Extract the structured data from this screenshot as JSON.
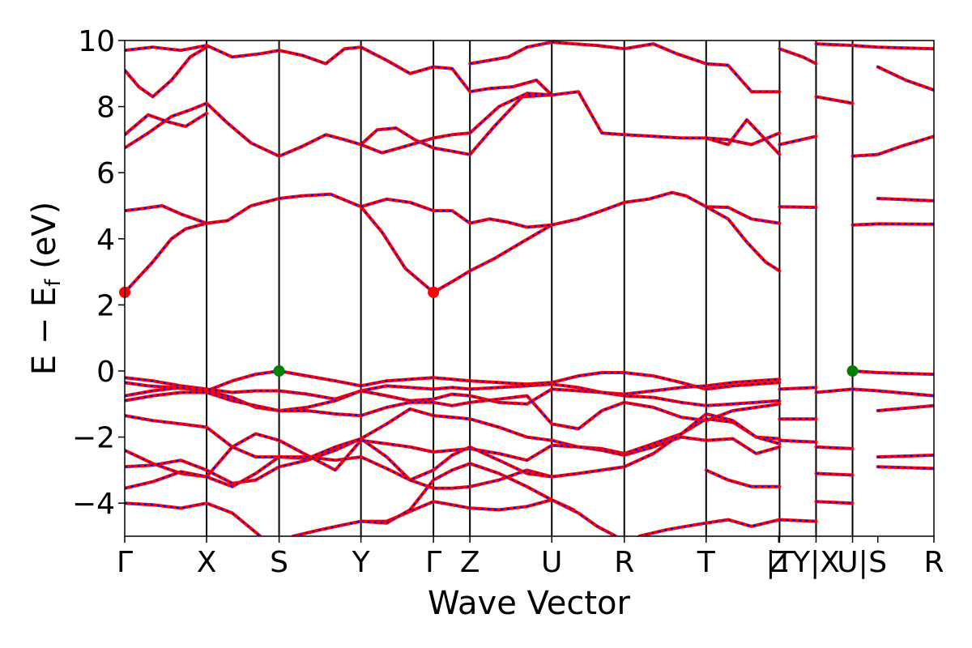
{
  "chart_data": {
    "type": "line",
    "title": "",
    "xlabel": "Wave Vector",
    "ylabel": "E − E_f (eV)",
    "ylabel_parts": {
      "main": "E − E",
      "sub": "f",
      "unit": " (eV)"
    },
    "ylim": [
      -5,
      10
    ],
    "yticks": [
      -4,
      -2,
      0,
      2,
      4,
      6,
      8,
      10
    ],
    "ytick_labels": [
      "−4",
      "−2",
      "0",
      "2",
      "4",
      "6",
      "8",
      "10"
    ],
    "xlim": [
      0,
      17.3
    ],
    "kpoints": [
      {
        "label": "Γ",
        "x": 0.0
      },
      {
        "label": "X",
        "x": 1.75
      },
      {
        "label": "S",
        "x": 3.3
      },
      {
        "label": "Y",
        "x": 5.05
      },
      {
        "label": "Γ",
        "x": 6.6
      },
      {
        "label": "Z",
        "x": 7.38
      },
      {
        "label": "U",
        "x": 9.13
      },
      {
        "label": "R",
        "x": 10.68
      },
      {
        "label": "T",
        "x": 12.43
      },
      {
        "label": "Z",
        "x": 13.98
      },
      {
        "label": "|T",
        "x": 14.0
      },
      {
        "label": "Y|X",
        "x": 14.78
      },
      {
        "label": "U|",
        "x": 15.56
      },
      {
        "label": "S",
        "x": 16.1
      },
      {
        "label": "R",
        "x": 17.3
      }
    ],
    "vlines_x": [
      1.75,
      3.3,
      5.05,
      6.6,
      7.38,
      9.13,
      10.68,
      12.43,
      14.0,
      14.78,
      15.56
    ],
    "grid": false,
    "legend": "none",
    "series_style": {
      "line_color": "#ff0000",
      "dash_color": "#0000ff"
    },
    "markers": [
      {
        "kind": "CBM",
        "x": 0.0,
        "y": 2.38,
        "color": "#ff0000"
      },
      {
        "kind": "CBM",
        "x": 6.6,
        "y": 2.38,
        "color": "#ff0000"
      },
      {
        "kind": "VBM",
        "x": 3.3,
        "y": 0.0,
        "color": "#008000"
      },
      {
        "kind": "VBM",
        "x": 15.56,
        "y": 0.0,
        "color": "#008000"
      }
    ],
    "series": [
      {
        "x": [
          0,
          0.6,
          1.0,
          1.3,
          1.75,
          2.2,
          2.7,
          3.3,
          3.8,
          4.4,
          5.05
        ],
        "y": [
          2.38,
          3.3,
          4.0,
          4.3,
          4.47,
          4.55,
          5.0,
          5.22,
          5.3,
          5.35,
          4.97
        ]
      },
      {
        "x": [
          5.05,
          5.5,
          6.0,
          6.6,
          7.0,
          7.38,
          7.9,
          8.5,
          9.13
        ],
        "y": [
          4.97,
          4.2,
          3.1,
          2.38,
          2.7,
          3.03,
          3.4,
          3.9,
          4.42
        ]
      },
      {
        "x": [
          0,
          0.4,
          0.8,
          1.2,
          1.75
        ],
        "y": [
          4.85,
          4.92,
          5.0,
          4.75,
          4.47
        ]
      },
      {
        "x": [
          5.05,
          5.6,
          6.1,
          6.6,
          7.0,
          7.38,
          7.8,
          8.2,
          8.6,
          9.13
        ],
        "y": [
          4.97,
          5.2,
          5.1,
          4.85,
          4.85,
          4.47,
          4.6,
          4.5,
          4.35,
          4.42
        ]
      },
      {
        "x": [
          9.13,
          9.7,
          10.2,
          10.68,
          11.2,
          11.7,
          12.0,
          12.43,
          12.9,
          13.4,
          14.0
        ],
        "y": [
          4.42,
          4.6,
          4.85,
          5.1,
          5.2,
          5.4,
          5.3,
          4.97,
          4.95,
          4.6,
          4.47
        ]
      },
      {
        "x": [
          12.43,
          12.9,
          13.3,
          13.7,
          14.0
        ],
        "y": [
          4.97,
          4.6,
          3.9,
          3.3,
          3.03
        ]
      },
      {
        "x": [
          14.0,
          14.78
        ],
        "y": [
          4.97,
          4.95
        ]
      },
      {
        "x": [
          15.56,
          16.1,
          17.3
        ],
        "y": [
          4.42,
          4.45,
          4.44
        ]
      },
      {
        "x": [
          16.1,
          17.3
        ],
        "y": [
          5.22,
          5.15
        ]
      },
      {
        "x": [
          0,
          0.5,
          1.0,
          1.4,
          1.75,
          2.2,
          2.7,
          3.3,
          3.8,
          4.3,
          4.7,
          5.05
        ],
        "y": [
          6.75,
          7.2,
          7.7,
          7.9,
          8.1,
          7.5,
          6.9,
          6.5,
          6.8,
          7.15,
          7.0,
          6.85
        ]
      },
      {
        "x": [
          0,
          0.5,
          0.9,
          1.3,
          1.75
        ],
        "y": [
          7.15,
          7.75,
          7.55,
          7.4,
          7.8
        ]
      },
      {
        "x": [
          5.05,
          5.4,
          5.8,
          6.2,
          6.6,
          7.0,
          7.38
        ],
        "y": [
          6.85,
          7.3,
          7.35,
          7.0,
          6.75,
          6.65,
          6.55
        ]
      },
      {
        "x": [
          5.05,
          5.5,
          6.0,
          6.6,
          7.0,
          7.38
        ],
        "y": [
          6.85,
          6.6,
          6.8,
          7.05,
          7.15,
          7.2
        ]
      },
      {
        "x": [
          7.38,
          7.9,
          8.5,
          9.13,
          9.7,
          10.2,
          10.68,
          11.3,
          11.9,
          12.43
        ],
        "y": [
          6.55,
          7.4,
          8.3,
          8.35,
          8.45,
          7.2,
          7.15,
          7.1,
          7.05,
          7.05
        ]
      },
      {
        "x": [
          7.38,
          8.0,
          8.6,
          9.13
        ],
        "y": [
          7.2,
          8.0,
          8.4,
          8.35
        ]
      },
      {
        "x": [
          12.43,
          12.9,
          13.3,
          13.7,
          14.0
        ],
        "y": [
          7.05,
          6.85,
          7.6,
          7.0,
          6.55
        ]
      },
      {
        "x": [
          12.43,
          12.9,
          13.4,
          14.0
        ],
        "y": [
          7.05,
          7.0,
          6.85,
          7.2
        ]
      },
      {
        "x": [
          14.0,
          14.78
        ],
        "y": [
          6.85,
          7.1
        ]
      },
      {
        "x": [
          15.56,
          16.1,
          16.6,
          17.3
        ],
        "y": [
          6.5,
          6.55,
          6.8,
          7.1
        ]
      },
      {
        "x": [
          0,
          0.3,
          0.6,
          1.0,
          1.4,
          1.75
        ],
        "y": [
          9.1,
          8.6,
          8.3,
          8.8,
          9.5,
          9.8
        ]
      },
      {
        "x": [
          0,
          0.6,
          1.2,
          1.75,
          2.3,
          2.9,
          3.3,
          3.8,
          4.3,
          4.7,
          5.05
        ],
        "y": [
          9.7,
          9.8,
          9.7,
          9.85,
          9.5,
          9.6,
          9.7,
          9.55,
          9.3,
          9.75,
          9.8
        ]
      },
      {
        "x": [
          5.05,
          5.6,
          6.1,
          6.6,
          7.0,
          7.38,
          7.8,
          8.3,
          8.8,
          9.13
        ],
        "y": [
          9.8,
          9.4,
          9.0,
          9.2,
          9.15,
          8.45,
          8.55,
          8.6,
          8.8,
          8.35
        ]
      },
      {
        "x": [
          7.38,
          7.8,
          8.2,
          8.6,
          9.13
        ],
        "y": [
          9.3,
          9.4,
          9.5,
          9.8,
          9.95
        ]
      },
      {
        "x": [
          9.13,
          9.6,
          10.1,
          10.68,
          11.3,
          11.8,
          12.43
        ],
        "y": [
          9.95,
          9.9,
          9.85,
          9.75,
          9.9,
          9.6,
          9.3
        ]
      },
      {
        "x": [
          12.43,
          12.9,
          13.4,
          14.0
        ],
        "y": [
          9.3,
          9.25,
          8.45,
          8.45
        ]
      },
      {
        "x": [
          14.0,
          14.5,
          14.78
        ],
        "y": [
          9.75,
          9.5,
          9.3
        ]
      },
      {
        "x": [
          14.78,
          15.56
        ],
        "y": [
          8.3,
          8.1
        ]
      },
      {
        "x": [
          14.78,
          15.56,
          16.1,
          17.3
        ],
        "y": [
          9.9,
          9.85,
          9.8,
          9.75
        ]
      },
      {
        "x": [
          16.1,
          16.7,
          17.3
        ],
        "y": [
          9.2,
          8.8,
          8.5
        ]
      },
      {
        "x": [
          0,
          0.5,
          1.0,
          1.4,
          1.75,
          2.3,
          2.8,
          3.3,
          3.9,
          4.5,
          5.05,
          5.6,
          6.1,
          6.6,
          7.0,
          7.38,
          8.0,
          8.6,
          9.13,
          9.7,
          10.2,
          10.68,
          11.3,
          11.9,
          12.43,
          13.0,
          13.5,
          14.0
        ],
        "y": [
          -0.35,
          -0.45,
          -0.5,
          -0.55,
          -0.6,
          -0.3,
          -0.1,
          0.0,
          -0.15,
          -0.3,
          -0.45,
          -0.3,
          -0.25,
          -0.2,
          -0.25,
          -0.3,
          -0.35,
          -0.4,
          -0.35,
          -0.15,
          -0.05,
          -0.05,
          -0.15,
          -0.35,
          -0.55,
          -0.45,
          -0.4,
          -0.35
        ]
      },
      {
        "x": [
          0,
          0.6,
          1.2,
          1.75,
          2.3,
          2.8,
          3.3,
          3.9,
          4.5,
          5.05,
          5.6,
          6.1,
          6.6,
          7.0,
          7.38,
          8.0,
          8.6,
          9.13,
          9.7,
          10.2,
          10.68,
          11.3,
          11.9,
          12.43,
          13.0,
          13.5,
          14.0
        ],
        "y": [
          -0.2,
          -0.3,
          -0.45,
          -0.55,
          -0.65,
          -0.6,
          -0.6,
          -0.7,
          -0.85,
          -0.6,
          -0.45,
          -0.5,
          -0.55,
          -0.5,
          -0.55,
          -0.5,
          -0.45,
          -0.4,
          -0.5,
          -0.65,
          -0.7,
          -0.6,
          -0.5,
          -0.45,
          -0.35,
          -0.3,
          -0.25
        ]
      },
      {
        "x": [
          0,
          0.6,
          1.2,
          1.75,
          2.3,
          2.8,
          3.3,
          3.9,
          4.5,
          5.05,
          5.6,
          6.1,
          6.6,
          7.0,
          7.38,
          8.0,
          8.6,
          9.13,
          9.7,
          10.2,
          10.68,
          11.3,
          11.9,
          12.43,
          13.0,
          13.5,
          14.0
        ],
        "y": [
          -0.75,
          -0.6,
          -0.5,
          -0.6,
          -0.8,
          -1.1,
          -1.2,
          -1.1,
          -0.9,
          -0.6,
          -0.75,
          -0.9,
          -0.85,
          -0.7,
          -0.75,
          -0.95,
          -1.0,
          -0.55,
          -0.6,
          -0.65,
          -0.75,
          -0.8,
          -0.95,
          -1.05,
          -1.0,
          -0.95,
          -0.9
        ]
      },
      {
        "x": [
          0,
          0.6,
          1.2,
          1.75,
          2.3,
          2.8,
          3.3,
          3.9,
          4.5,
          5.05,
          5.6,
          6.1,
          6.6,
          7.0,
          7.38,
          8.0,
          8.6,
          9.13,
          9.7,
          10.2,
          10.68,
          11.3,
          11.9,
          12.43,
          13.0,
          13.5,
          14.0
        ],
        "y": [
          -0.9,
          -0.75,
          -0.65,
          -0.65,
          -0.9,
          -1.05,
          -1.2,
          -1.2,
          -1.3,
          -1.35,
          -1.1,
          -0.95,
          -0.95,
          -1.05,
          -0.95,
          -0.85,
          -0.75,
          -1.6,
          -1.75,
          -1.2,
          -0.95,
          -1.1,
          -1.4,
          -1.5,
          -1.2,
          -1.1,
          -1.0
        ]
      },
      {
        "x": [
          0,
          0.6,
          1.2,
          1.75,
          2.3,
          2.8,
          3.3,
          3.9,
          4.5,
          5.05,
          5.6,
          6.1,
          6.6,
          7.0,
          7.38,
          8.0,
          8.6,
          9.13,
          9.7,
          10.2,
          10.68,
          11.3,
          11.9,
          12.43,
          13.0,
          13.5,
          14.0
        ],
        "y": [
          -1.35,
          -1.5,
          -1.6,
          -1.7,
          -2.3,
          -2.6,
          -2.6,
          -2.65,
          -2.3,
          -2.05,
          -1.6,
          -1.15,
          -1.35,
          -1.4,
          -1.45,
          -1.7,
          -2.0,
          -2.1,
          -2.3,
          -2.35,
          -2.5,
          -2.2,
          -1.9,
          -1.45,
          -1.55,
          -2.0,
          -2.05
        ]
      },
      {
        "x": [
          0,
          0.6,
          1.2,
          1.75,
          2.3,
          2.8,
          3.3,
          3.9,
          4.5,
          5.05,
          5.6,
          6.1,
          6.6,
          7.0,
          7.38,
          8.0,
          8.6,
          9.13,
          9.7,
          10.2,
          10.68,
          11.3,
          11.9,
          12.43,
          13.0,
          13.5,
          14.0
        ],
        "y": [
          -2.4,
          -2.8,
          -3.1,
          -3.2,
          -2.3,
          -1.9,
          -2.1,
          -2.55,
          -3.0,
          -2.1,
          -2.2,
          -2.3,
          -2.45,
          -2.4,
          -2.35,
          -2.5,
          -2.7,
          -2.25,
          -2.3,
          -2.4,
          -2.55,
          -2.3,
          -2.0,
          -2.1,
          -2.05,
          -2.5,
          -2.3
        ]
      },
      {
        "x": [
          0,
          0.6,
          1.2,
          1.75,
          2.3,
          2.8,
          3.3,
          3.9,
          4.5,
          5.05,
          5.6,
          6.1,
          6.6,
          7.0,
          7.38,
          8.0,
          8.6,
          9.13,
          9.7,
          10.2,
          10.68,
          11.3,
          11.9,
          12.43,
          13.0,
          13.5,
          14.0
        ],
        "y": [
          -2.9,
          -2.85,
          -2.7,
          -3.0,
          -3.4,
          -3.3,
          -2.9,
          -2.7,
          -2.4,
          -2.05,
          -2.6,
          -3.3,
          -3.0,
          -2.55,
          -2.3,
          -2.7,
          -3.1,
          -3.2,
          -3.1,
          -3.0,
          -2.9,
          -2.5,
          -1.9,
          -1.3,
          -1.5,
          -2.0,
          -2.2
        ]
      },
      {
        "x": [
          0,
          0.6,
          1.2,
          1.75,
          2.3,
          2.8,
          3.3,
          3.9,
          4.5,
          5.05,
          5.6,
          6.1,
          6.6,
          7.0,
          7.38,
          8.0,
          8.6,
          9.13
        ],
        "y": [
          -3.55,
          -3.35,
          -3.05,
          -3.2,
          -3.5,
          -3.1,
          -2.6,
          -2.6,
          -2.7,
          -2.6,
          -2.95,
          -3.3,
          -3.55,
          -3.55,
          -3.5,
          -3.3,
          -3.0,
          -3.2
        ]
      },
      {
        "x": [
          0,
          0.6,
          1.2,
          1.75,
          2.3,
          2.9
        ],
        "y": [
          -4.0,
          -4.05,
          -4.15,
          -4.0,
          -4.3,
          -5.0
        ]
      },
      {
        "x": [
          3.6,
          4.2,
          4.7,
          5.05,
          5.6,
          6.1,
          6.6,
          7.0,
          7.38,
          8.0,
          8.6,
          9.13,
          9.7,
          10.1,
          10.5
        ],
        "y": [
          -5.0,
          -4.8,
          -4.65,
          -4.55,
          -4.55,
          -4.25,
          -3.95,
          -4.05,
          -4.15,
          -4.2,
          -4.1,
          -3.9,
          -4.3,
          -4.7,
          -5.0
        ]
      },
      {
        "x": [
          5.05,
          5.6,
          6.1,
          6.6,
          7.0,
          7.38,
          8.0,
          8.6,
          9.13,
          9.6
        ],
        "y": [
          -4.55,
          -4.6,
          -4.2,
          -3.3,
          -3.0,
          -2.8,
          -3.1,
          -3.5,
          -3.9,
          -4.2
        ]
      },
      {
        "x": [
          11.0,
          11.6,
          12.0,
          12.43,
          12.9,
          13.4,
          14.0
        ],
        "y": [
          -5.0,
          -4.8,
          -4.7,
          -4.6,
          -4.5,
          -4.7,
          -4.5
        ]
      },
      {
        "x": [
          12.43,
          12.9,
          13.4,
          14.0
        ],
        "y": [
          -3.0,
          -3.3,
          -3.5,
          -3.5
        ]
      },
      {
        "x": [
          14.0,
          14.78
        ],
        "y": [
          -0.55,
          -0.5
        ]
      },
      {
        "x": [
          14.0,
          14.78
        ],
        "y": [
          -1.45,
          -1.45
        ]
      },
      {
        "x": [
          14.0,
          14.78
        ],
        "y": [
          -2.1,
          -2.15
        ]
      },
      {
        "x": [
          14.0,
          14.78
        ],
        "y": [
          -4.5,
          -4.55
        ]
      },
      {
        "x": [
          14.78,
          15.56
        ],
        "y": [
          -0.65,
          -0.55
        ]
      },
      {
        "x": [
          14.78,
          15.56
        ],
        "y": [
          -2.3,
          -2.35
        ]
      },
      {
        "x": [
          14.78,
          15.56
        ],
        "y": [
          -3.1,
          -3.15
        ]
      },
      {
        "x": [
          14.78,
          15.56
        ],
        "y": [
          -3.95,
          -4.0
        ]
      },
      {
        "x": [
          15.56,
          16.1,
          17.3
        ],
        "y": [
          0.0,
          -0.05,
          -0.1
        ]
      },
      {
        "x": [
          15.56,
          16.1,
          17.3
        ],
        "y": [
          -0.55,
          -0.6,
          -0.75
        ]
      },
      {
        "x": [
          16.1,
          17.3
        ],
        "y": [
          -1.2,
          -1.05
        ]
      },
      {
        "x": [
          16.1,
          17.3
        ],
        "y": [
          -2.6,
          -2.55
        ]
      },
      {
        "x": [
          16.1,
          17.3
        ],
        "y": [
          -2.9,
          -2.95
        ]
      }
    ]
  }
}
